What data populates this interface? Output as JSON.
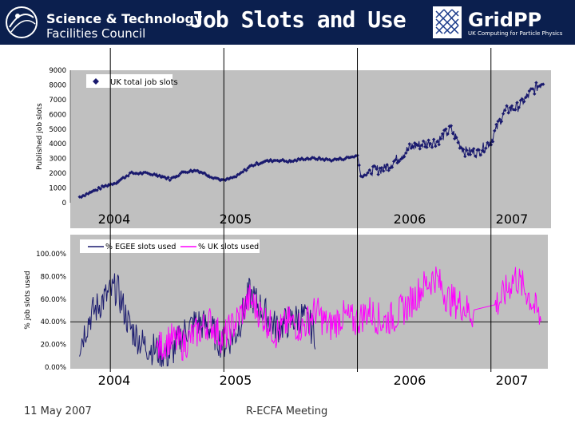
{
  "header": {
    "org_line1": "Science & Technology",
    "org_line2": "Facilities Council",
    "title": "Job Slots and Use",
    "gridpp_name": "GridPP",
    "gridpp_tagline": "UK Computing for Particle Physics",
    "background_color": "#0b1f4e"
  },
  "footer": {
    "date": "11 May 2007",
    "meeting": "R-ECFA Meeting"
  },
  "chart_data": [
    {
      "type": "line",
      "title": "",
      "xlabel": "",
      "ylabel": "Published job slots",
      "ylim": [
        0,
        9000
      ],
      "y_ticks": [
        "0",
        "1000",
        "2000",
        "3000",
        "4000",
        "5000",
        "6000",
        "7000",
        "8000",
        "9000"
      ],
      "legend_position": "top-left",
      "grid": false,
      "plot_background": "#c0c0c0",
      "series": [
        {
          "name": "UK total job slots",
          "color": "#1a1a6e",
          "marker": "diamond",
          "x": [
            2003.92,
            2004.0,
            2004.1,
            2004.2,
            2004.3,
            2004.4,
            2004.5,
            2004.6,
            2004.7,
            2004.8,
            2004.9,
            2005.0,
            2005.1,
            2005.2,
            2005.3,
            2005.4,
            2005.5,
            2005.6,
            2005.7,
            2005.8,
            2005.9,
            2006.0,
            2006.03,
            2006.1,
            2006.2,
            2006.3,
            2006.4,
            2006.5,
            2006.6,
            2006.7,
            2006.8,
            2006.9,
            2007.0,
            2007.1,
            2007.2,
            2007.3,
            2007.4
          ],
          "values": [
            400,
            700,
            1100,
            1400,
            2000,
            2000,
            1900,
            1600,
            2100,
            2200,
            1800,
            1500,
            1800,
            2500,
            2800,
            2900,
            2800,
            3000,
            3000,
            2900,
            3000,
            3200,
            1700,
            2200,
            2300,
            3000,
            3800,
            4000,
            4200,
            5000,
            3500,
            3400,
            4200,
            6200,
            6500,
            7500,
            8300
          ]
        }
      ],
      "x_tick_labels": [
        "2004",
        "2005",
        "2006",
        "2007"
      ],
      "year_dividers": [
        2004.15,
        2005.0,
        2006.0,
        2007.0
      ]
    },
    {
      "type": "line",
      "title": "",
      "xlabel": "",
      "ylabel": "% job slots used",
      "ylim": [
        0,
        100
      ],
      "y_ticks": [
        "0.00%",
        "20.00%",
        "40.00%",
        "60.00%",
        "80.00%",
        "100.00%"
      ],
      "legend_position": "top",
      "grid": false,
      "plot_background": "#c0c0c0",
      "series": [
        {
          "name": "% EGEE slots used",
          "color": "#1a1a6e",
          "x": [
            2003.92,
            2004.0,
            2004.1,
            2004.2,
            2004.3,
            2004.4,
            2004.5,
            2004.6,
            2004.7,
            2004.8,
            2004.9,
            2005.0,
            2005.1,
            2005.2,
            2005.3,
            2005.4,
            2005.5,
            2005.6,
            2005.7
          ],
          "values": [
            20,
            45,
            60,
            70,
            35,
            20,
            15,
            10,
            30,
            40,
            35,
            20,
            30,
            65,
            50,
            35,
            40,
            45,
            30
          ]
        },
        {
          "name": "% UK slots used",
          "color": "#ff00ff",
          "x": [
            2004.5,
            2004.6,
            2004.7,
            2004.8,
            2004.9,
            2005.0,
            2005.1,
            2005.2,
            2005.3,
            2005.4,
            2005.5,
            2005.6,
            2005.7,
            2005.8,
            2005.9,
            2006.0,
            2006.1,
            2006.2,
            2006.3,
            2006.4,
            2006.5,
            2006.6,
            2006.7,
            2006.8,
            2006.9,
            2007.0,
            2007.1,
            2007.2,
            2007.3,
            2007.4
          ],
          "values": [
            15,
            25,
            20,
            30,
            40,
            25,
            40,
            60,
            45,
            30,
            40,
            35,
            50,
            35,
            45,
            40,
            50,
            40,
            45,
            55,
            70,
            80,
            60,
            55,
            45,
            50,
            60,
            80,
            65,
            40
          ]
        }
      ],
      "x_tick_labels": [
        "2004",
        "2005",
        "2006",
        "2007"
      ],
      "year_dividers": [
        2004.15,
        2005.0,
        2006.0,
        2007.0
      ]
    }
  ]
}
